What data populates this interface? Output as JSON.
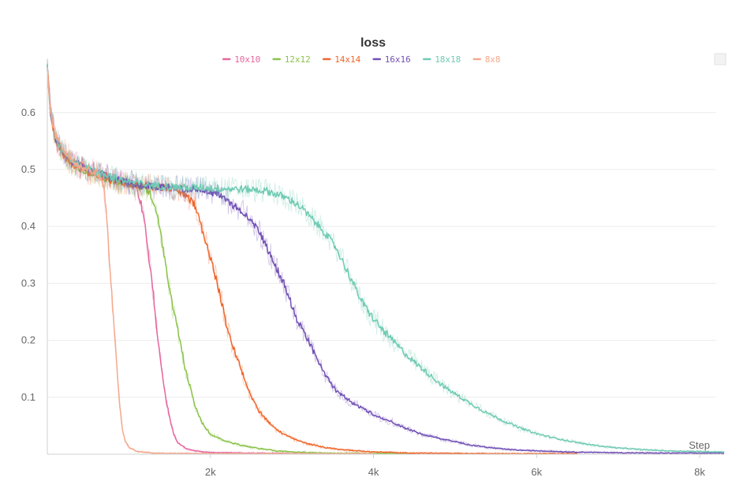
{
  "chart_data": {
    "type": "line",
    "title": "loss",
    "xlabel": "Step",
    "ylabel": "",
    "xlim": [
      0,
      8300
    ],
    "ylim": [
      0,
      0.68
    ],
    "x_ticks": [
      {
        "value": 2000,
        "label": "2k"
      },
      {
        "value": 4000,
        "label": "4k"
      },
      {
        "value": 6000,
        "label": "6k"
      },
      {
        "value": 8000,
        "label": "8k"
      }
    ],
    "y_ticks": [
      {
        "value": 0.1,
        "label": "0.1"
      },
      {
        "value": 0.2,
        "label": "0.2"
      },
      {
        "value": 0.3,
        "label": "0.3"
      },
      {
        "value": 0.4,
        "label": "0.4"
      },
      {
        "value": 0.5,
        "label": "0.5"
      },
      {
        "value": 0.6,
        "label": "0.6"
      }
    ],
    "grid": true,
    "legend_position": "top-center",
    "series": [
      {
        "name": "10x10",
        "color": "#e5679e",
        "end_x": 3300,
        "points": [
          [
            0,
            0.68
          ],
          [
            40,
            0.6
          ],
          [
            100,
            0.555
          ],
          [
            200,
            0.53
          ],
          [
            300,
            0.515
          ],
          [
            500,
            0.5
          ],
          [
            700,
            0.49
          ],
          [
            900,
            0.48
          ],
          [
            1000,
            0.475
          ],
          [
            1100,
            0.465
          ],
          [
            1150,
            0.44
          ],
          [
            1200,
            0.4
          ],
          [
            1250,
            0.34
          ],
          [
            1300,
            0.28
          ],
          [
            1350,
            0.21
          ],
          [
            1400,
            0.15
          ],
          [
            1450,
            0.1
          ],
          [
            1500,
            0.065
          ],
          [
            1550,
            0.035
          ],
          [
            1600,
            0.02
          ],
          [
            1700,
            0.01
          ],
          [
            1800,
            0.006
          ],
          [
            2000,
            0.003
          ],
          [
            2500,
            0.002
          ],
          [
            3300,
            0.001
          ]
        ]
      },
      {
        "name": "12x12",
        "color": "#8bc34a",
        "end_x": 4500,
        "points": [
          [
            0,
            0.68
          ],
          [
            40,
            0.6
          ],
          [
            100,
            0.55
          ],
          [
            200,
            0.525
          ],
          [
            300,
            0.51
          ],
          [
            500,
            0.495
          ],
          [
            700,
            0.485
          ],
          [
            900,
            0.478
          ],
          [
            1100,
            0.472
          ],
          [
            1200,
            0.468
          ],
          [
            1250,
            0.46
          ],
          [
            1300,
            0.445
          ],
          [
            1350,
            0.42
          ],
          [
            1400,
            0.38
          ],
          [
            1450,
            0.33
          ],
          [
            1500,
            0.29
          ],
          [
            1550,
            0.25
          ],
          [
            1600,
            0.22
          ],
          [
            1650,
            0.18
          ],
          [
            1700,
            0.145
          ],
          [
            1750,
            0.12
          ],
          [
            1800,
            0.09
          ],
          [
            1850,
            0.07
          ],
          [
            1900,
            0.055
          ],
          [
            2000,
            0.035
          ],
          [
            2200,
            0.022
          ],
          [
            2400,
            0.015
          ],
          [
            2600,
            0.01
          ],
          [
            2800,
            0.006
          ],
          [
            3000,
            0.004
          ],
          [
            3400,
            0.002
          ],
          [
            4500,
            0.001
          ]
        ]
      },
      {
        "name": "14x14",
        "color": "#f0672d",
        "end_x": 6500,
        "points": [
          [
            0,
            0.68
          ],
          [
            40,
            0.6
          ],
          [
            100,
            0.55
          ],
          [
            200,
            0.525
          ],
          [
            300,
            0.51
          ],
          [
            500,
            0.495
          ],
          [
            700,
            0.485
          ],
          [
            900,
            0.478
          ],
          [
            1100,
            0.473
          ],
          [
            1300,
            0.47
          ],
          [
            1500,
            0.468
          ],
          [
            1600,
            0.463
          ],
          [
            1700,
            0.455
          ],
          [
            1800,
            0.44
          ],
          [
            1850,
            0.42
          ],
          [
            1900,
            0.395
          ],
          [
            1950,
            0.37
          ],
          [
            2000,
            0.345
          ],
          [
            2050,
            0.32
          ],
          [
            2100,
            0.29
          ],
          [
            2150,
            0.26
          ],
          [
            2200,
            0.225
          ],
          [
            2250,
            0.2
          ],
          [
            2300,
            0.18
          ],
          [
            2350,
            0.16
          ],
          [
            2400,
            0.14
          ],
          [
            2450,
            0.12
          ],
          [
            2500,
            0.1
          ],
          [
            2600,
            0.075
          ],
          [
            2700,
            0.058
          ],
          [
            2800,
            0.045
          ],
          [
            2900,
            0.035
          ],
          [
            3000,
            0.028
          ],
          [
            3200,
            0.018
          ],
          [
            3400,
            0.012
          ],
          [
            3600,
            0.008
          ],
          [
            3800,
            0.006
          ],
          [
            4000,
            0.004
          ],
          [
            4500,
            0.002
          ],
          [
            5500,
            0.001
          ],
          [
            6500,
            0.001
          ]
        ]
      },
      {
        "name": "16x16",
        "color": "#7251b5",
        "end_x": 8300,
        "points": [
          [
            0,
            0.68
          ],
          [
            40,
            0.6
          ],
          [
            100,
            0.555
          ],
          [
            200,
            0.53
          ],
          [
            300,
            0.515
          ],
          [
            500,
            0.5
          ],
          [
            700,
            0.49
          ],
          [
            900,
            0.48
          ],
          [
            1100,
            0.474
          ],
          [
            1300,
            0.47
          ],
          [
            1500,
            0.468
          ],
          [
            1700,
            0.465
          ],
          [
            1900,
            0.465
          ],
          [
            2000,
            0.462
          ],
          [
            2100,
            0.455
          ],
          [
            2200,
            0.445
          ],
          [
            2300,
            0.435
          ],
          [
            2400,
            0.425
          ],
          [
            2500,
            0.41
          ],
          [
            2550,
            0.4
          ],
          [
            2600,
            0.39
          ],
          [
            2650,
            0.375
          ],
          [
            2700,
            0.36
          ],
          [
            2750,
            0.345
          ],
          [
            2800,
            0.33
          ],
          [
            2850,
            0.315
          ],
          [
            2900,
            0.3
          ],
          [
            2950,
            0.28
          ],
          [
            3000,
            0.26
          ],
          [
            3050,
            0.24
          ],
          [
            3100,
            0.225
          ],
          [
            3150,
            0.21
          ],
          [
            3200,
            0.2
          ],
          [
            3250,
            0.185
          ],
          [
            3300,
            0.17
          ],
          [
            3350,
            0.155
          ],
          [
            3400,
            0.14
          ],
          [
            3450,
            0.13
          ],
          [
            3500,
            0.12
          ],
          [
            3550,
            0.11
          ],
          [
            3600,
            0.105
          ],
          [
            3700,
            0.095
          ],
          [
            3800,
            0.085
          ],
          [
            3900,
            0.078
          ],
          [
            4000,
            0.07
          ],
          [
            4200,
            0.058
          ],
          [
            4400,
            0.045
          ],
          [
            4600,
            0.035
          ],
          [
            4800,
            0.028
          ],
          [
            5000,
            0.022
          ],
          [
            5200,
            0.016
          ],
          [
            5400,
            0.012
          ],
          [
            5600,
            0.009
          ],
          [
            5800,
            0.007
          ],
          [
            6000,
            0.006
          ],
          [
            6400,
            0.004
          ],
          [
            6800,
            0.003
          ],
          [
            7400,
            0.002
          ],
          [
            8300,
            0.002
          ]
        ]
      },
      {
        "name": "18x18",
        "color": "#6fcbb3",
        "end_x": 8300,
        "points": [
          [
            0,
            0.68
          ],
          [
            40,
            0.6
          ],
          [
            100,
            0.555
          ],
          [
            200,
            0.53
          ],
          [
            300,
            0.515
          ],
          [
            500,
            0.5
          ],
          [
            700,
            0.49
          ],
          [
            900,
            0.482
          ],
          [
            1100,
            0.476
          ],
          [
            1300,
            0.472
          ],
          [
            1500,
            0.47
          ],
          [
            1700,
            0.468
          ],
          [
            1900,
            0.468
          ],
          [
            2100,
            0.467
          ],
          [
            2300,
            0.466
          ],
          [
            2500,
            0.465
          ],
          [
            2700,
            0.462
          ],
          [
            2800,
            0.457
          ],
          [
            2900,
            0.452
          ],
          [
            3000,
            0.445
          ],
          [
            3100,
            0.435
          ],
          [
            3200,
            0.42
          ],
          [
            3300,
            0.405
          ],
          [
            3400,
            0.39
          ],
          [
            3450,
            0.38
          ],
          [
            3500,
            0.37
          ],
          [
            3550,
            0.36
          ],
          [
            3600,
            0.345
          ],
          [
            3650,
            0.33
          ],
          [
            3700,
            0.315
          ],
          [
            3750,
            0.3
          ],
          [
            3800,
            0.285
          ],
          [
            3850,
            0.27
          ],
          [
            3900,
            0.258
          ],
          [
            4000,
            0.238
          ],
          [
            4100,
            0.22
          ],
          [
            4200,
            0.205
          ],
          [
            4300,
            0.19
          ],
          [
            4400,
            0.175
          ],
          [
            4500,
            0.162
          ],
          [
            4600,
            0.15
          ],
          [
            4700,
            0.138
          ],
          [
            4800,
            0.126
          ],
          [
            4900,
            0.115
          ],
          [
            5000,
            0.106
          ],
          [
            5100,
            0.097
          ],
          [
            5200,
            0.088
          ],
          [
            5300,
            0.08
          ],
          [
            5400,
            0.072
          ],
          [
            5500,
            0.065
          ],
          [
            5600,
            0.058
          ],
          [
            5700,
            0.052
          ],
          [
            5800,
            0.046
          ],
          [
            6000,
            0.036
          ],
          [
            6200,
            0.029
          ],
          [
            6400,
            0.023
          ],
          [
            6600,
            0.018
          ],
          [
            6800,
            0.014
          ],
          [
            7000,
            0.011
          ],
          [
            7300,
            0.008
          ],
          [
            7600,
            0.006
          ],
          [
            7900,
            0.005
          ],
          [
            8300,
            0.004
          ]
        ]
      },
      {
        "name": "8x8",
        "color": "#f4a98e",
        "end_x": 4000,
        "points": [
          [
            0,
            0.68
          ],
          [
            40,
            0.6
          ],
          [
            100,
            0.56
          ],
          [
            200,
            0.535
          ],
          [
            300,
            0.52
          ],
          [
            400,
            0.505
          ],
          [
            500,
            0.5
          ],
          [
            600,
            0.495
          ],
          [
            650,
            0.485
          ],
          [
            700,
            0.46
          ],
          [
            720,
            0.43
          ],
          [
            740,
            0.39
          ],
          [
            760,
            0.34
          ],
          [
            780,
            0.3
          ],
          [
            800,
            0.26
          ],
          [
            820,
            0.22
          ],
          [
            840,
            0.18
          ],
          [
            860,
            0.14
          ],
          [
            880,
            0.1
          ],
          [
            900,
            0.07
          ],
          [
            920,
            0.045
          ],
          [
            950,
            0.025
          ],
          [
            1000,
            0.012
          ],
          [
            1100,
            0.005
          ],
          [
            1300,
            0.002
          ],
          [
            2000,
            0.001
          ],
          [
            4000,
            0.001
          ]
        ]
      }
    ]
  }
}
